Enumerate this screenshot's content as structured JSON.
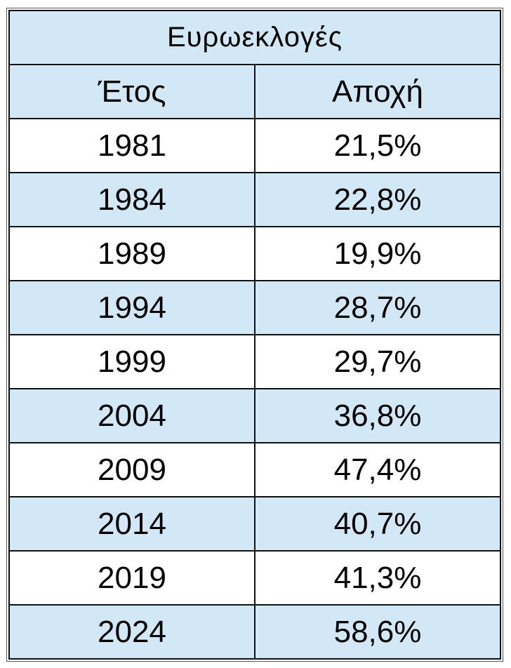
{
  "table": {
    "title": "Ευρωεκλογές",
    "header": [
      "Έτος",
      "Αποχή"
    ],
    "rows": [
      [
        "1981",
        "21,5%"
      ],
      [
        "1984",
        "22,8%"
      ],
      [
        "1989",
        "19,9%"
      ],
      [
        "1994",
        "28,7%"
      ],
      [
        "1999",
        "29,7%"
      ],
      [
        "2004",
        "36,8%"
      ],
      [
        "2009",
        "47,4%"
      ],
      [
        "2014",
        "40,7%"
      ],
      [
        "2019",
        "41,3%"
      ],
      [
        "2024",
        "58,6%"
      ]
    ]
  }
}
